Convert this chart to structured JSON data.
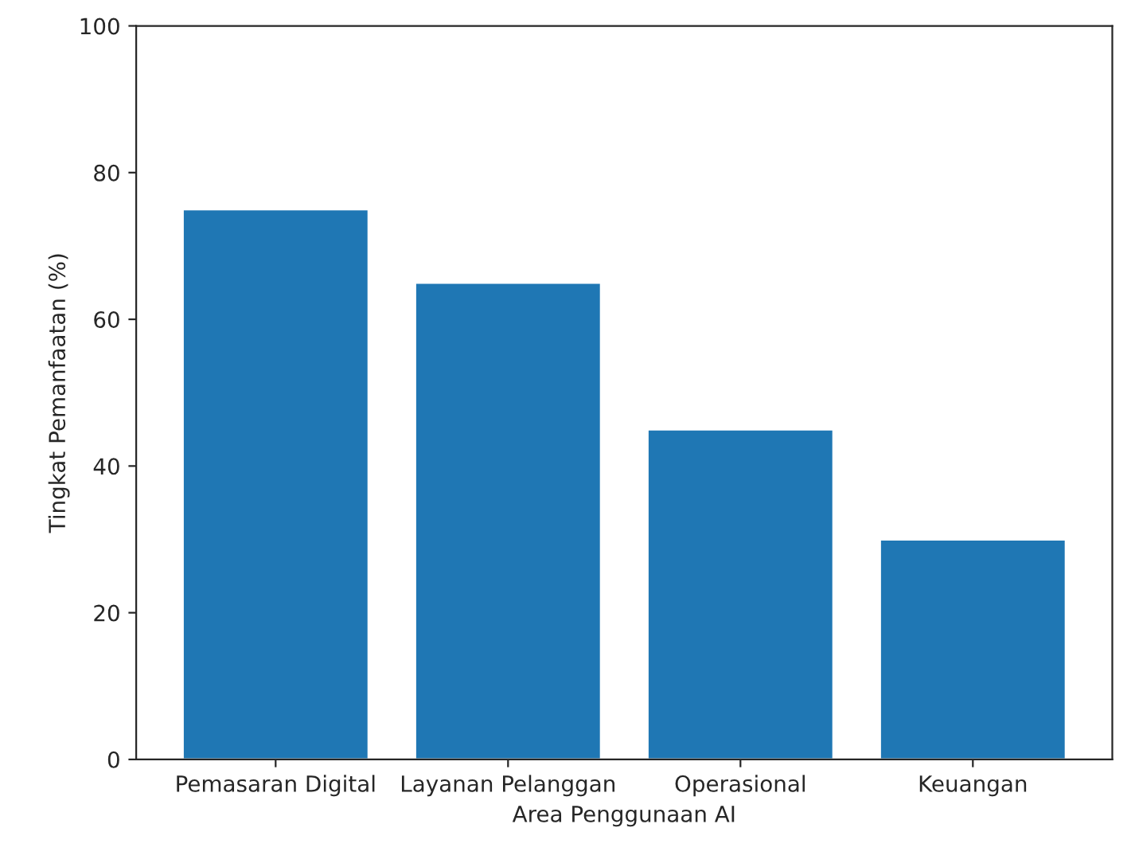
{
  "chart_data": {
    "type": "bar",
    "xlabel": "Area Penggunaan AI",
    "ylabel": "Tingkat Pemanfaatan (%)",
    "categories": [
      "Pemasaran Digital",
      "Layanan Pelanggan",
      "Operasional",
      "Keuangan"
    ],
    "values": [
      75,
      65,
      45,
      30
    ],
    "color": "#1f77b4",
    "ylim": [
      0,
      100
    ],
    "yticks": [
      0,
      20,
      40,
      60,
      80,
      100
    ],
    "grid": false
  }
}
